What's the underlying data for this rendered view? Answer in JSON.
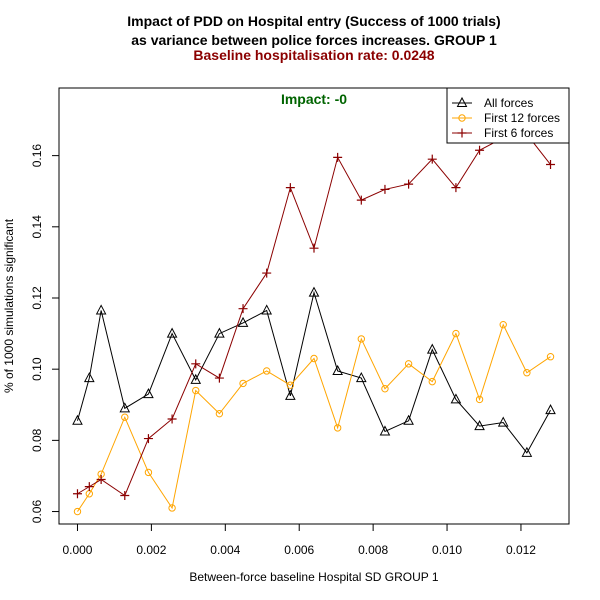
{
  "chart_data": {
    "type": "line",
    "title_lines": [
      "Impact of PDD on Hospital entry (Success of 1000 trials)",
      "as variance between police forces increases. GROUP 1"
    ],
    "subtitles": [
      {
        "text": "Baseline hospitalisation rate: 0.0248",
        "color": "#8b0000"
      },
      {
        "text": "Impact: -0",
        "color": "#006400"
      }
    ],
    "xlabel": "Between-force baseline Hospital SD GROUP 1",
    "ylabel": "% of 1000 simulations significant",
    "xlim": [
      -0.0005,
      0.0133
    ],
    "ylim": [
      0.0565,
      0.179
    ],
    "x_ticks": [
      0,
      0.002,
      0.004,
      0.006,
      0.008,
      0.01,
      0.012
    ],
    "x_tick_labels": [
      "0.000",
      "0.002",
      "0.004",
      "0.006",
      "0.008",
      "0.010",
      "0.012"
    ],
    "y_ticks": [
      0.06,
      0.08,
      0.1,
      0.12,
      0.14,
      0.16
    ],
    "y_tick_labels": [
      "0.06",
      "0.08",
      "0.10",
      "0.12",
      "0.14",
      "0.16"
    ],
    "x": [
      0,
      0.00032,
      0.00064,
      0.00128,
      0.00192,
      0.00256,
      0.0032,
      0.00384,
      0.00448,
      0.00512,
      0.00576,
      0.0064,
      0.00704,
      0.00768,
      0.00832,
      0.00896,
      0.0096,
      0.01024,
      0.01088,
      0.01152,
      0.01216,
      0.0128
    ],
    "series": [
      {
        "name": "All forces",
        "color": "#000000",
        "marker": "triangle",
        "values": [
          0.0855,
          0.0975,
          0.1165,
          0.089,
          0.093,
          0.11,
          0.097,
          0.11,
          0.113,
          0.1165,
          0.0925,
          0.1215,
          0.0995,
          0.0975,
          0.0825,
          0.0855,
          0.1055,
          0.0915,
          0.084,
          0.085,
          0.0765,
          0.0885
        ]
      },
      {
        "name": "First 12 forces",
        "color": "#ffa500",
        "marker": "circle",
        "values": [
          0.06,
          0.065,
          0.0705,
          0.0865,
          0.071,
          0.061,
          0.094,
          0.0875,
          0.096,
          0.0995,
          0.0955,
          0.103,
          0.0835,
          0.1085,
          0.0945,
          0.1015,
          0.0965,
          0.11,
          0.0915,
          0.1125,
          0.099,
          0.1035
        ]
      },
      {
        "name": "First 6 forces",
        "color": "#8b0000",
        "marker": "plus",
        "values": [
          0.065,
          0.067,
          0.069,
          0.0645,
          0.0805,
          0.086,
          0.1015,
          0.0975,
          0.117,
          0.127,
          0.151,
          0.134,
          0.1595,
          0.1475,
          0.1505,
          0.152,
          0.159,
          0.151,
          0.1615,
          0.165,
          0.166,
          0.1575
        ]
      }
    ],
    "legend_position": "top-right",
    "grid": false
  }
}
